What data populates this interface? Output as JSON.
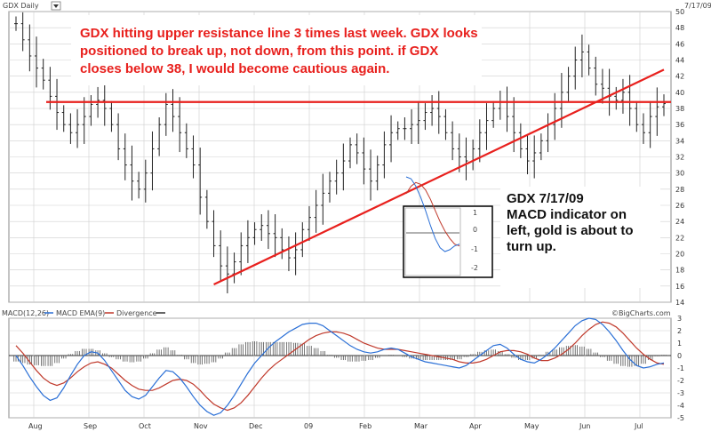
{
  "header": {
    "symbol_label": "GDX Daily",
    "date_label": "7/17/09",
    "watermark": "©BigCharts.com"
  },
  "annotations": {
    "top_note": [
      "GDX hitting upper resistance line 3 times last week.  GDX looks",
      "positioned to break up, not down, from this point.   if GDX",
      "closes below 38, I would become cautious again."
    ],
    "side_note": [
      "GDX 7/17/09",
      "MACD indicator on",
      "left, gold is about to",
      "turn up."
    ]
  },
  "colors": {
    "price_bars": "#222222",
    "trendline": "#e8201d",
    "macd_line": "#2a6fd6",
    "ema_line": "#c0392b",
    "histogram": "#555555",
    "grid": "#cfcfcf"
  },
  "chart_data": [
    {
      "type": "ohlc",
      "ylim": [
        14,
        50
      ],
      "y_ticks": [
        "14",
        "16",
        "18",
        "20",
        "22",
        "24",
        "26",
        "28",
        "30",
        "32",
        "34",
        "36",
        "38",
        "40",
        "42",
        "44",
        "46",
        "48",
        "50"
      ],
      "x_tick_labels": [
        "Aug",
        "Sep",
        "Oct",
        "Nov",
        "Dec",
        "09",
        "Feb",
        "Mar",
        "Apr",
        "May",
        "Jun",
        "Jul"
      ],
      "grid": true,
      "close_series": [
        48.5,
        46.5,
        44.5,
        43.0,
        41.5,
        39.5,
        37.5,
        36.0,
        35.0,
        36.0,
        37.0,
        38.5,
        39.0,
        38.0,
        36.0,
        33.0,
        31.0,
        29.0,
        28.0,
        30.0,
        33.0,
        36.0,
        38.5,
        37.0,
        35.0,
        33.0,
        31.0,
        27.0,
        24.0,
        21.0,
        18.5,
        17.5,
        19.0,
        21.0,
        22.0,
        23.0,
        23.5,
        22.5,
        22.0,
        20.5,
        19.5,
        20.5,
        23.0,
        24.5,
        26.0,
        27.5,
        29.0,
        30.0,
        31.5,
        33.5,
        32.5,
        30.5,
        29.0,
        31.0,
        33.5,
        35.0,
        35.5,
        35.5,
        36.0,
        36.5,
        37.5,
        38.0,
        37.0,
        35.0,
        33.0,
        32.0,
        31.5,
        33.0,
        35.0,
        36.5,
        38.0,
        38.8,
        37.0,
        35.0,
        33.0,
        31.5,
        32.5,
        34.0,
        36.0,
        38.0,
        40.0,
        42.0,
        44.0,
        45.0,
        43.0,
        41.0,
        40.5,
        39.5,
        39.0,
        40.0,
        38.0,
        36.0,
        35.0,
        37.0,
        38.2,
        38.6
      ],
      "horizontal_resistance": 38.8,
      "trendline": {
        "from": [
          29,
          16.2
        ],
        "to": [
          95,
          42.8
        ]
      },
      "inset_macd": {
        "y_ticks": [
          "1",
          "0",
          "-1",
          "-2"
        ]
      }
    },
    {
      "type": "line",
      "title": "MACD(12,26)",
      "legend": [
        "MACD EMA(9)",
        "Divergence"
      ],
      "ylim": [
        -5,
        3
      ],
      "y_ticks": [
        "3",
        "2",
        "1",
        "0",
        "-1",
        "-2",
        "-3",
        "-4",
        "-5"
      ],
      "series": [
        {
          "name": "MACD EMA(9)",
          "values": [
            0.8,
            0.2,
            -0.5,
            -1.2,
            -1.8,
            -2.2,
            -2.4,
            -2.2,
            -1.8,
            -1.3,
            -0.9,
            -0.6,
            -0.5,
            -0.7,
            -1.0,
            -1.5,
            -2.0,
            -2.4,
            -2.7,
            -2.8,
            -2.8,
            -2.6,
            -2.3,
            -2.0,
            -1.9,
            -2.0,
            -2.3,
            -2.8,
            -3.4,
            -3.9,
            -4.2,
            -4.4,
            -4.2,
            -3.8,
            -3.2,
            -2.5,
            -1.8,
            -1.2,
            -0.7,
            -0.3,
            0.1,
            0.5,
            0.9,
            1.3,
            1.6,
            1.8,
            1.9,
            1.9,
            1.8,
            1.6,
            1.3,
            1.0,
            0.8,
            0.6,
            0.5,
            0.5,
            0.5,
            0.4,
            0.3,
            0.2,
            0.1,
            0.0,
            -0.1,
            -0.2,
            -0.3,
            -0.5,
            -0.6,
            -0.6,
            -0.5,
            -0.3,
            0.0,
            0.3,
            0.4,
            0.4,
            0.3,
            0.1,
            -0.2,
            -0.4,
            -0.4,
            -0.2,
            0.1,
            0.5,
            1.0,
            1.6,
            2.1,
            2.5,
            2.7,
            2.6,
            2.3,
            1.8,
            1.2,
            0.6,
            0.1,
            -0.3,
            -0.6,
            -0.7
          ]
        },
        {
          "name": "MACD",
          "values": [
            0.0,
            -0.8,
            -1.7,
            -2.5,
            -3.2,
            -3.6,
            -3.4,
            -2.6,
            -1.6,
            -0.7,
            0.0,
            0.3,
            0.2,
            -0.4,
            -1.2,
            -2.0,
            -2.8,
            -3.3,
            -3.5,
            -3.2,
            -2.5,
            -1.8,
            -1.2,
            -1.3,
            -1.8,
            -2.5,
            -3.3,
            -4.0,
            -4.5,
            -4.8,
            -4.6,
            -4.0,
            -3.2,
            -2.3,
            -1.4,
            -0.6,
            0.0,
            0.6,
            1.1,
            1.5,
            1.9,
            2.2,
            2.5,
            2.6,
            2.6,
            2.4,
            2.0,
            1.6,
            1.2,
            0.8,
            0.5,
            0.3,
            0.2,
            0.3,
            0.5,
            0.6,
            0.5,
            0.2,
            -0.1,
            -0.3,
            -0.5,
            -0.6,
            -0.7,
            -0.8,
            -0.9,
            -1.0,
            -0.8,
            -0.4,
            0.0,
            0.4,
            0.8,
            0.9,
            0.6,
            0.1,
            -0.3,
            -0.5,
            -0.6,
            -0.3,
            0.1,
            0.6,
            1.2,
            1.8,
            2.4,
            2.8,
            3.0,
            2.9,
            2.5,
            1.9,
            1.2,
            0.4,
            -0.3,
            -0.8,
            -1.0,
            -0.9,
            -0.7,
            -0.6
          ]
        }
      ]
    }
  ]
}
